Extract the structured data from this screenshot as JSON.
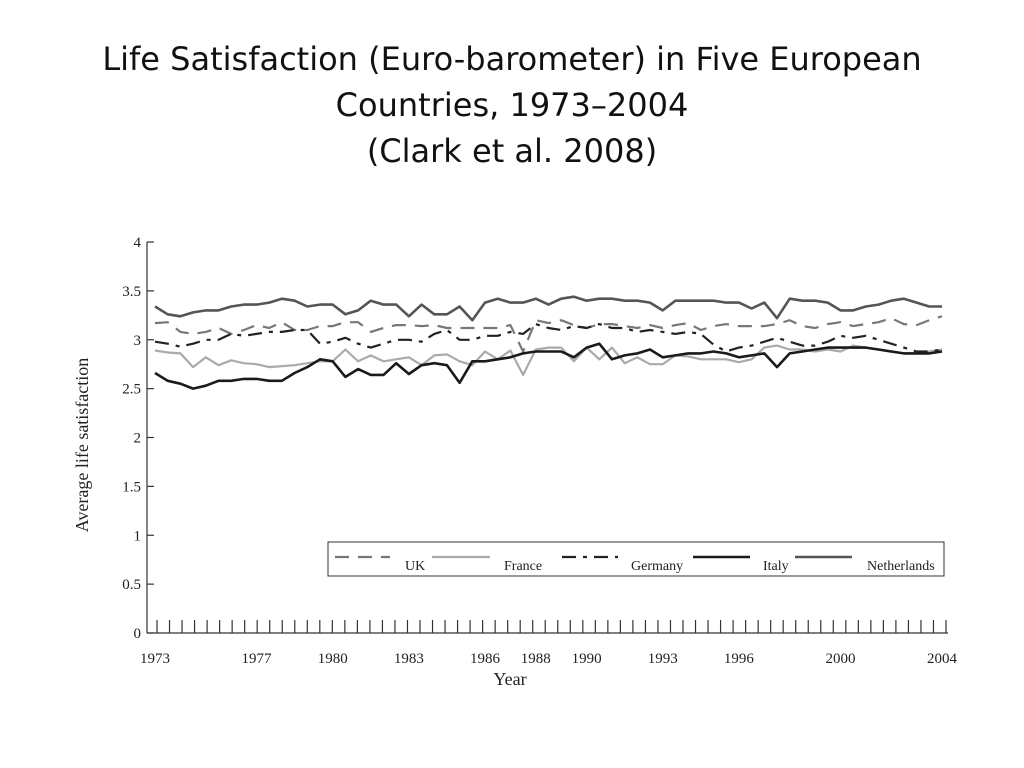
{
  "title": {
    "line1": "Life Satisfaction (Euro-barometer) in Five European",
    "line2": "Countries, 1973–2004",
    "line3": "(Clark et al. 2008)"
  },
  "chart_data": {
    "type": "line",
    "xlabel": "Year",
    "ylabel": "Average life satisfaction",
    "ylim": [
      0,
      4
    ],
    "xlim": [
      1973,
      2004
    ],
    "y_ticks": [
      "0",
      "0.5",
      "1",
      "1.5",
      "2",
      "2.5",
      "3",
      "3.5",
      "4"
    ],
    "x_tick_labels": [
      "1973",
      "1977",
      "1980",
      "1983",
      "1986",
      "1988",
      "1990",
      "1993",
      "1996",
      "2000",
      "2004"
    ],
    "legend_position": "bottom-right",
    "x": [
      1973,
      1973.5,
      1974,
      1974.5,
      1975,
      1975.5,
      1976,
      1976.5,
      1977,
      1977.5,
      1978,
      1978.5,
      1979,
      1979.5,
      1980,
      1980.5,
      1981,
      1981.5,
      1982,
      1982.5,
      1983,
      1983.5,
      1984,
      1984.5,
      1985,
      1985.5,
      1986,
      1986.5,
      1987,
      1987.5,
      1988,
      1988.5,
      1989,
      1989.5,
      1990,
      1990.5,
      1991,
      1991.5,
      1992,
      1992.5,
      1993,
      1993.5,
      1994,
      1994.5,
      1995,
      1995.5,
      1996,
      1996.5,
      1997,
      1997.5,
      1998,
      1998.5,
      1999,
      1999.5,
      2000,
      2000.5,
      2001,
      2001.5,
      2002,
      2002.5,
      2003,
      2003.5,
      2004
    ],
    "series": [
      {
        "name": "UK",
        "color": "#777777",
        "dash": "14,9",
        "width": 2.2,
        "values": [
          3.17,
          3.18,
          3.08,
          3.06,
          3.08,
          3.12,
          3.06,
          3.1,
          3.15,
          3.12,
          3.18,
          3.1,
          3.1,
          3.14,
          3.14,
          3.18,
          3.18,
          3.08,
          3.12,
          3.15,
          3.15,
          3.14,
          3.15,
          3.12,
          3.12,
          3.12,
          3.12,
          3.12,
          3.15,
          2.88,
          3.2,
          3.17,
          3.2,
          3.15,
          3.12,
          3.16,
          3.16,
          3.14,
          3.12,
          3.15,
          3.12,
          3.15,
          3.17,
          3.1,
          3.14,
          3.16,
          3.14,
          3.14,
          3.14,
          3.16,
          3.2,
          3.14,
          3.12,
          3.16,
          3.18,
          3.14,
          3.16,
          3.18,
          3.22,
          3.16,
          3.15,
          3.2,
          3.24
        ]
      },
      {
        "name": "France",
        "color": "#aaaaaa",
        "dash": "",
        "width": 2.2,
        "values": [
          2.89,
          2.87,
          2.86,
          2.72,
          2.82,
          2.74,
          2.79,
          2.76,
          2.75,
          2.72,
          2.73,
          2.74,
          2.76,
          2.78,
          2.78,
          2.9,
          2.78,
          2.84,
          2.78,
          2.8,
          2.82,
          2.74,
          2.84,
          2.85,
          2.78,
          2.74,
          2.88,
          2.8,
          2.89,
          2.64,
          2.9,
          2.92,
          2.92,
          2.78,
          2.92,
          2.8,
          2.92,
          2.76,
          2.82,
          2.75,
          2.75,
          2.84,
          2.83,
          2.8,
          2.8,
          2.8,
          2.77,
          2.8,
          2.92,
          2.94,
          2.9,
          2.9,
          2.88,
          2.9,
          2.88,
          2.94,
          2.92,
          2.9,
          2.88,
          2.86,
          2.86,
          2.88,
          2.9
        ]
      },
      {
        "name": "Germany",
        "color": "#222222",
        "dash": "14,7,4,7",
        "width": 2.2,
        "values": [
          2.98,
          2.96,
          2.93,
          2.96,
          3.0,
          3.0,
          3.06,
          3.04,
          3.06,
          3.08,
          3.08,
          3.1,
          3.1,
          2.96,
          2.98,
          3.02,
          2.96,
          2.92,
          2.96,
          3.0,
          3.0,
          2.98,
          3.06,
          3.1,
          3.0,
          3.0,
          3.04,
          3.04,
          3.08,
          3.06,
          3.16,
          3.12,
          3.1,
          3.14,
          3.12,
          3.16,
          3.12,
          3.12,
          3.08,
          3.1,
          3.08,
          3.06,
          3.08,
          3.06,
          2.95,
          2.88,
          2.92,
          2.94,
          2.98,
          3.02,
          2.98,
          2.94,
          2.94,
          2.98,
          3.04,
          3.02,
          3.04,
          3.0,
          2.96,
          2.92,
          2.88,
          2.88,
          2.9
        ]
      },
      {
        "name": "Italy",
        "color": "#1a1a1a",
        "dash": "",
        "width": 2.6,
        "values": [
          2.66,
          2.58,
          2.55,
          2.5,
          2.53,
          2.58,
          2.58,
          2.6,
          2.6,
          2.58,
          2.58,
          2.66,
          2.72,
          2.8,
          2.78,
          2.62,
          2.7,
          2.64,
          2.64,
          2.76,
          2.65,
          2.74,
          2.76,
          2.74,
          2.56,
          2.78,
          2.78,
          2.8,
          2.82,
          2.86,
          2.88,
          2.88,
          2.88,
          2.82,
          2.92,
          2.96,
          2.8,
          2.84,
          2.86,
          2.9,
          2.82,
          2.84,
          2.86,
          2.86,
          2.88,
          2.86,
          2.82,
          2.84,
          2.86,
          2.72,
          2.86,
          2.88,
          2.9,
          2.92,
          2.92,
          2.92,
          2.92,
          2.9,
          2.88,
          2.86,
          2.86,
          2.86,
          2.88
        ]
      },
      {
        "name": "Netherlands",
        "color": "#555555",
        "dash": "",
        "width": 2.6,
        "values": [
          3.34,
          3.26,
          3.24,
          3.28,
          3.3,
          3.3,
          3.34,
          3.36,
          3.36,
          3.38,
          3.42,
          3.4,
          3.34,
          3.36,
          3.36,
          3.26,
          3.3,
          3.4,
          3.36,
          3.36,
          3.24,
          3.36,
          3.26,
          3.26,
          3.34,
          3.2,
          3.38,
          3.42,
          3.38,
          3.38,
          3.42,
          3.36,
          3.42,
          3.44,
          3.4,
          3.42,
          3.42,
          3.4,
          3.4,
          3.38,
          3.3,
          3.4,
          3.4,
          3.4,
          3.4,
          3.38,
          3.38,
          3.32,
          3.38,
          3.22,
          3.42,
          3.4,
          3.4,
          3.38,
          3.3,
          3.3,
          3.34,
          3.36,
          3.4,
          3.42,
          3.38,
          3.34,
          3.34
        ]
      }
    ]
  }
}
